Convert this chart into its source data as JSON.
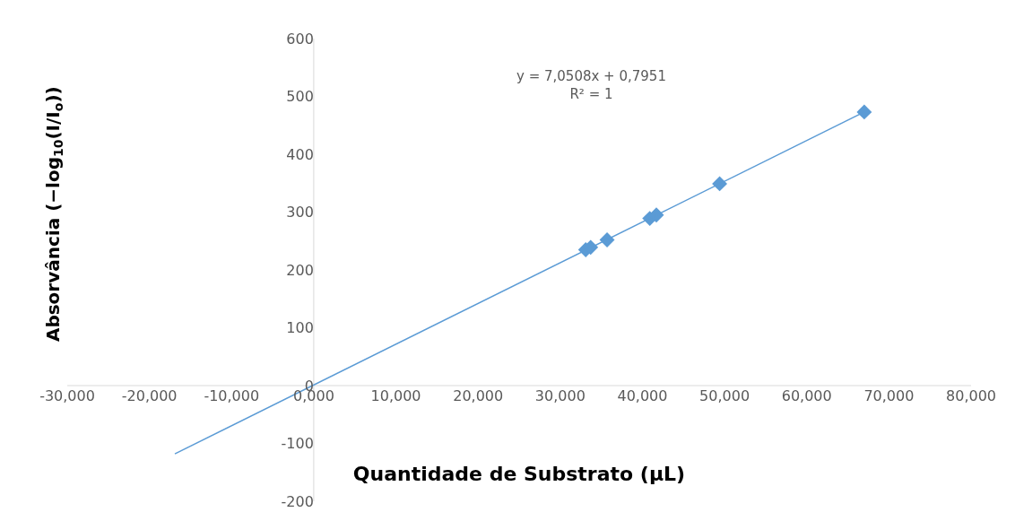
{
  "chart_data": {
    "type": "scatter",
    "xlabel": "Quantidade de Substrato (µL)",
    "ylabel": "Absorvância (−log$_{10}$(I/I$_{o}$))",
    "series": [
      {
        "color": "#5b9bd5",
        "marker": "diamond",
        "x": [
          33.1,
          33.7,
          35.7,
          40.9,
          41.7,
          49.4,
          67.0
        ],
        "values": [
          235,
          239,
          252,
          289,
          295,
          349,
          473
        ]
      },
      {
        "type": "line",
        "color": "#5b9bd5",
        "marker": "none",
        "line_style": "solid",
        "x": [
          -16.9,
          67.0
        ],
        "values": [
          -118,
          473
        ]
      }
    ],
    "annotations": [
      "y = 7,0508x + 0,7951\nR² = 1"
    ],
    "xlim": [
      -30,
      80
    ],
    "ylim": [
      -200,
      600
    ],
    "xticks": [
      {
        "value": -30,
        "label": "-30,000"
      },
      {
        "value": -20,
        "label": "-20,000"
      },
      {
        "value": -10,
        "label": "-10,000"
      },
      {
        "value": 0,
        "label": "0,000"
      },
      {
        "value": 10,
        "label": "10,000"
      },
      {
        "value": 20,
        "label": "20,000"
      },
      {
        "value": 30,
        "label": "30,000"
      },
      {
        "value": 40,
        "label": "40,000"
      },
      {
        "value": 50,
        "label": "50,000"
      },
      {
        "value": 60,
        "label": "60,000"
      },
      {
        "value": 70,
        "label": "70,000"
      },
      {
        "value": 80,
        "label": "80,000"
      }
    ],
    "yticks": [
      -200,
      -100,
      0,
      100,
      200,
      300,
      400,
      500,
      600
    ],
    "grid": false
  }
}
